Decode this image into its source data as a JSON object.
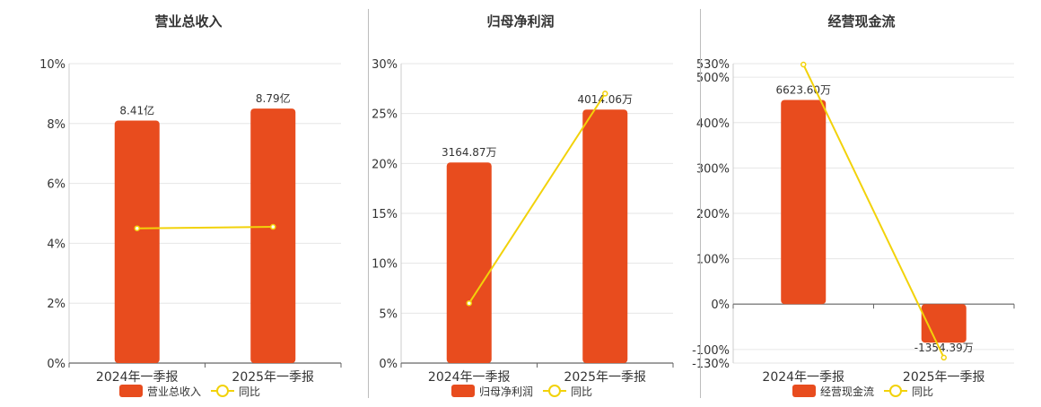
{
  "colors": {
    "bar": "#e84c1e",
    "line": "#f2d20a",
    "grid": "#e6e6e6",
    "axis": "#666666"
  },
  "legend_line_label": "同比",
  "chart_data": [
    {
      "type": "bar",
      "title": "营业总收入",
      "legend_bar_label": "营业总收入",
      "categories": [
        "2024年一季报",
        "2025年一季报"
      ],
      "bar_values": [
        8.1,
        8.5
      ],
      "bar_labels": [
        "8.41亿",
        "8.79亿"
      ],
      "yoy_values": [
        4.5,
        4.55
      ],
      "ylim": [
        0,
        10
      ],
      "yticks": [
        0,
        2,
        4,
        6,
        8,
        10
      ],
      "ytick_labels": [
        "0%",
        "2%",
        "4%",
        "6%",
        "8%",
        "10%"
      ]
    },
    {
      "type": "bar",
      "title": "归母净利润",
      "legend_bar_label": "归母净利润",
      "categories": [
        "2024年一季报",
        "2025年一季报"
      ],
      "bar_values": [
        20.1,
        25.4
      ],
      "bar_labels": [
        "3164.87万",
        "4014.06万"
      ],
      "yoy_values": [
        6,
        27
      ],
      "ylim": [
        0,
        30
      ],
      "yticks": [
        0,
        5,
        10,
        15,
        20,
        25,
        30
      ],
      "ytick_labels": [
        "0%",
        "5%",
        "10%",
        "15%",
        "20%",
        "25%",
        "30%"
      ]
    },
    {
      "type": "bar",
      "title": "经营现金流",
      "legend_bar_label": "经营现金流",
      "categories": [
        "2024年一季报",
        "2025年一季报"
      ],
      "bar_values": [
        450,
        -85
      ],
      "bar_labels": [
        "6623.60万",
        "-1354.39万"
      ],
      "yoy_values": [
        528,
        -118
      ],
      "ylim": [
        -130,
        530
      ],
      "yticks": [
        -130,
        -100,
        0,
        100,
        200,
        300,
        400,
        500,
        530
      ],
      "ytick_labels": [
        "-130%",
        "-100%",
        "0%",
        "100%",
        "200%",
        "300%",
        "400%",
        "500%",
        "530%"
      ]
    }
  ]
}
